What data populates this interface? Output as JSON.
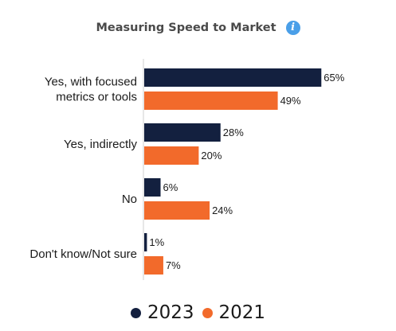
{
  "title": "Measuring Speed to Market",
  "icons": {
    "info": "info-icon"
  },
  "colors": {
    "series_2023": "#13203f",
    "series_2021": "#f26a2b",
    "info": "#4a9fe8",
    "axis": "#cfcfcf",
    "text": "#1a1a1a"
  },
  "chart_data": {
    "type": "bar",
    "orientation": "horizontal",
    "categories": [
      "Yes, with focused metrics or tools",
      "Yes, indirectly",
      "No",
      "Don't know/Not sure"
    ],
    "category_lines": [
      [
        "Yes, with focused",
        "metrics or tools"
      ],
      [
        "Yes, indirectly"
      ],
      [
        "No"
      ],
      [
        "Don't know/Not sure"
      ]
    ],
    "series": [
      {
        "name": "2023",
        "values": [
          65,
          28,
          6,
          1
        ],
        "labels": [
          "65%",
          "28%",
          "6%",
          "1%"
        ]
      },
      {
        "name": "2021",
        "values": [
          49,
          20,
          24,
          7
        ],
        "labels": [
          "49%",
          "20%",
          "24%",
          "7%"
        ]
      }
    ],
    "unit": "%",
    "xlim": [
      0,
      100
    ],
    "legend_position": "bottom",
    "grid": false
  },
  "legend": [
    {
      "label": "2023"
    },
    {
      "label": "2021"
    }
  ]
}
